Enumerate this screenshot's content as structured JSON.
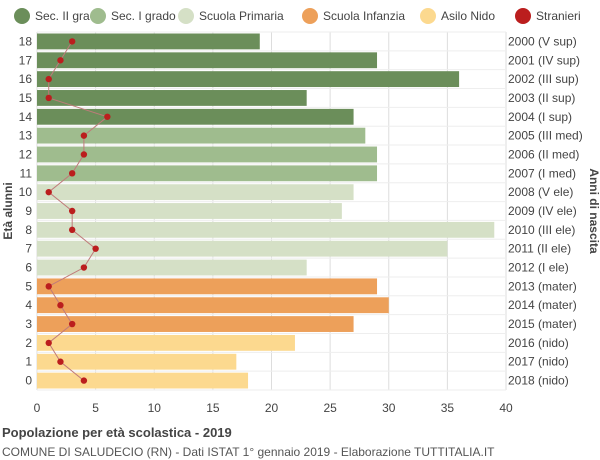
{
  "legend": [
    {
      "label": "Sec. II grado",
      "color": "#6b8e5a"
    },
    {
      "label": "Sec. I grado",
      "color": "#9fbc8e"
    },
    {
      "label": "Scuola Primaria",
      "color": "#d5e0c6"
    },
    {
      "label": "Scuola Infanzia",
      "color": "#eda05a"
    },
    {
      "label": "Asilo Nido",
      "color": "#fcd98f"
    },
    {
      "label": "Stranieri",
      "color": "#bb1e1e"
    }
  ],
  "footer": {
    "title": "Popolazione per età scolastica - 2019",
    "subtitle": "COMUNE DI SALUDECIO (RN) - Dati ISTAT 1° gennaio 2019 - Elaborazione TUTTITALIA.IT"
  },
  "chart_data": {
    "type": "bar",
    "orientation": "horizontal",
    "ylabel_left": "Età alunni",
    "ylabel_right": "Anni di nascita",
    "xlim": [
      0,
      40
    ],
    "xticks": [
      0,
      5,
      10,
      15,
      20,
      25,
      30,
      35,
      40
    ],
    "grid": true,
    "legend_position": "top",
    "ages": [
      18,
      17,
      16,
      15,
      14,
      13,
      12,
      11,
      10,
      9,
      8,
      7,
      6,
      5,
      4,
      3,
      2,
      1,
      0
    ],
    "birth_years": [
      "2000 (V sup)",
      "2001 (IV sup)",
      "2002 (III sup)",
      "2003 (II sup)",
      "2004 (I sup)",
      "2005 (III med)",
      "2006 (II med)",
      "2007 (I med)",
      "2008 (V ele)",
      "2009 (IV ele)",
      "2010 (III ele)",
      "2011 (II ele)",
      "2012 (I ele)",
      "2013 (mater)",
      "2014 (mater)",
      "2015 (mater)",
      "2016 (nido)",
      "2017 (nido)",
      "2018 (nido)"
    ],
    "values": [
      19,
      29,
      36,
      23,
      27,
      28,
      29,
      29,
      27,
      26,
      39,
      35,
      23,
      29,
      30,
      27,
      22,
      17,
      18
    ],
    "groups": [
      0,
      0,
      0,
      0,
      0,
      1,
      1,
      1,
      2,
      2,
      2,
      2,
      2,
      3,
      3,
      3,
      4,
      4,
      4
    ],
    "stranieri": [
      3,
      2,
      1,
      1,
      6,
      4,
      4,
      3,
      1,
      3,
      3,
      5,
      4,
      1,
      2,
      3,
      1,
      2,
      4
    ]
  }
}
